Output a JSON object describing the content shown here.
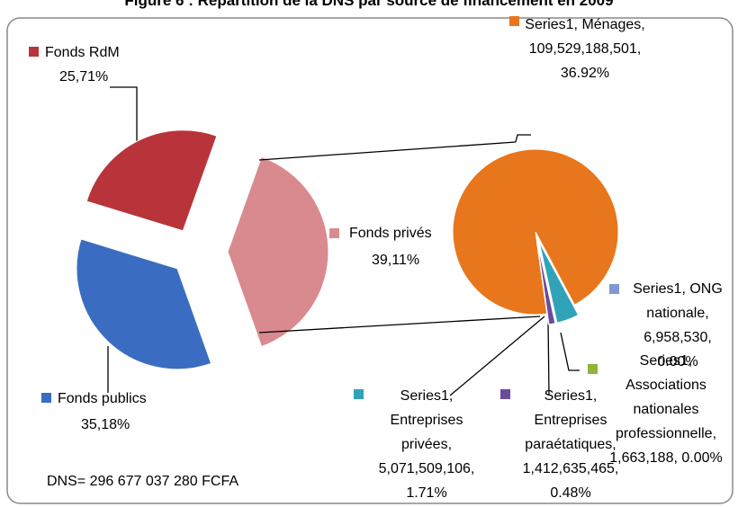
{
  "chart_data": [
    {
      "type": "pie",
      "title": "Figure 6 : Répartition de la DNS par source de financement en 2009",
      "annotation": "DNS= 296 677 037 280 FCFA",
      "categories": [
        "Fonds privés",
        "Fonds publics",
        "Fonds RdM"
      ],
      "values": [
        39.11,
        35.18,
        25.71
      ],
      "value_labels": [
        "39,11%",
        "35,18%",
        "25,71%"
      ],
      "colors": [
        "#d98a8e",
        "#3a6dc2",
        "#b8343a"
      ]
    },
    {
      "type": "pie",
      "values": [
        109529188501,
        5071509106,
        1412635465,
        6958530,
        1663188
      ],
      "value_labels": [
        "Series1, Ménages, 109,529,188,501, 36.92%",
        "Series1, Entreprises privées, 5,071,509,106, 1.71%",
        "Series1, Entreprises paraétatiques, 1,412,635,465, 0.48%",
        "Series1, ONG nationale, 6,958,530, 0.00%",
        "Series1, Associations nationales professionnelle, 1,663,188, 0.00%"
      ],
      "colors": [
        "#e8761d",
        "#30a3b8",
        "#6b4a9e",
        "#8199d2",
        "#8db53a"
      ]
    }
  ]
}
